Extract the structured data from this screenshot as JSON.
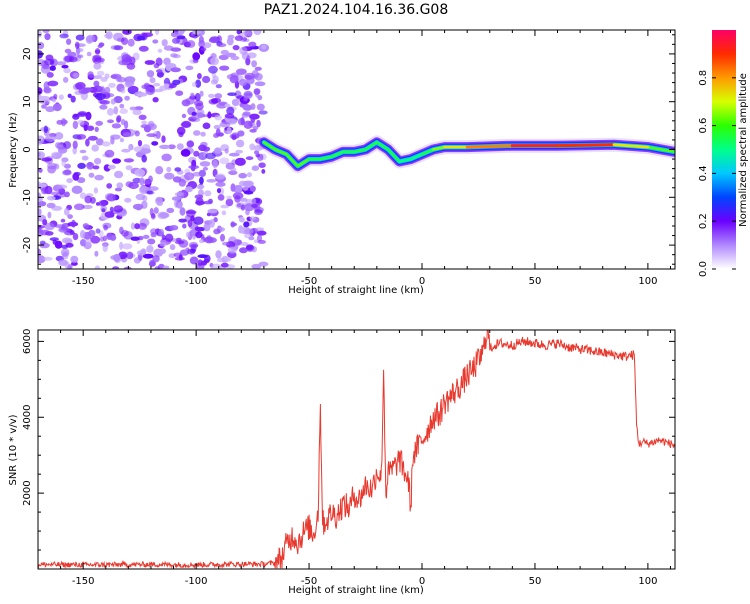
{
  "figure": {
    "title": "PAZ1.2024.104.16.36.G08"
  },
  "chart_data": [
    {
      "type": "heatmap",
      "xlabel": "Height of straight line (km)",
      "ylabel": "Frequency (Hz)",
      "xlim": [
        -170,
        112
      ],
      "ylim": [
        -25,
        25
      ],
      "xticks": [
        -150,
        -100,
        -50,
        0,
        50,
        100
      ],
      "yticks": [
        -20,
        -10,
        0,
        10,
        20
      ],
      "noise_region_x": [
        -170,
        -70
      ],
      "ridge": {
        "x": [
          -70,
          -65,
          -60,
          -55,
          -50,
          -45,
          -40,
          -35,
          -30,
          -25,
          -20,
          -15,
          -10,
          -5,
          0,
          5,
          10,
          20,
          40,
          60,
          85,
          100,
          112
        ],
        "frequency": [
          1.5,
          0,
          -1,
          -3.5,
          -2,
          -2,
          -1.5,
          -0.5,
          -0.5,
          0,
          1.5,
          0,
          -2.5,
          -2,
          -1,
          0,
          0.5,
          0.5,
          0.8,
          0.8,
          1,
          0.5,
          -0.5
        ],
        "amplitude": [
          0.3,
          0.4,
          0.3,
          0.3,
          0.5,
          0.6,
          0.5,
          0.6,
          0.5,
          0.6,
          0.5,
          0.6,
          0.5,
          0.5,
          0.5,
          0.6,
          0.7,
          0.75,
          0.9,
          0.95,
          0.85,
          0.6,
          0.3
        ]
      },
      "colorbar": {
        "label": "Normalized spectral amplitude",
        "ticks": [
          0.0,
          0.2,
          0.4,
          0.6,
          0.8
        ],
        "tick_labels": [
          "0.0",
          "0.2",
          "0.4",
          "0.6",
          "0.8"
        ],
        "range": [
          0,
          1
        ],
        "colors": [
          "#ffffff",
          "#b088ff",
          "#6a00ff",
          "#0044ff",
          "#00c8ff",
          "#00ff8a",
          "#2bff00",
          "#d8ff00",
          "#ff9a00",
          "#ff2a00",
          "#ff0066"
        ]
      }
    },
    {
      "type": "line",
      "xlabel": "Height of straight line (km)",
      "ylabel": "SNR (10 * v/v)",
      "xlim": [
        -170,
        112
      ],
      "ylim": [
        0,
        6300
      ],
      "xticks": [
        -150,
        -100,
        -50,
        0,
        50,
        100
      ],
      "yticks": [
        2000,
        4000,
        6000
      ],
      "line_color": "#e8392f",
      "series": [
        {
          "x": [
            -170,
            -150,
            -120,
            -100,
            -80,
            -70,
            -65,
            -62,
            -60,
            -57,
            -55,
            -52,
            -50,
            -48,
            -46,
            -45,
            -44,
            -42,
            -40,
            -38,
            -35,
            -32,
            -30,
            -28,
            -25,
            -22,
            -20,
            -18,
            -17,
            -16,
            -15,
            -12,
            -10,
            -8,
            -6,
            -5,
            -4,
            -2,
            0,
            2,
            5,
            8,
            10,
            12,
            15,
            18,
            20,
            22,
            25,
            27,
            29,
            30,
            32,
            35,
            40,
            45,
            50,
            55,
            60,
            65,
            70,
            75,
            80,
            85,
            90,
            94,
            95,
            96,
            98,
            100,
            105,
            110,
            112
          ],
          "y": [
            120,
            110,
            120,
            110,
            130,
            130,
            160,
            300,
            650,
            900,
            700,
            1000,
            1100,
            900,
            1500,
            4350,
            1200,
            1300,
            1500,
            1400,
            1700,
            1600,
            2000,
            1800,
            2200,
            2100,
            2600,
            2400,
            5250,
            2000,
            2500,
            2700,
            2900,
            2600,
            2300,
            1600,
            3000,
            3200,
            3400,
            3600,
            4000,
            4100,
            4400,
            4500,
            4700,
            4900,
            5100,
            5200,
            5500,
            5700,
            6400,
            5800,
            5900,
            5950,
            5900,
            6000,
            5950,
            5900,
            5950,
            5850,
            5800,
            5750,
            5700,
            5650,
            5600,
            5650,
            3800,
            3300,
            3350,
            3300,
            3400,
            3300,
            3250
          ]
        }
      ]
    }
  ]
}
